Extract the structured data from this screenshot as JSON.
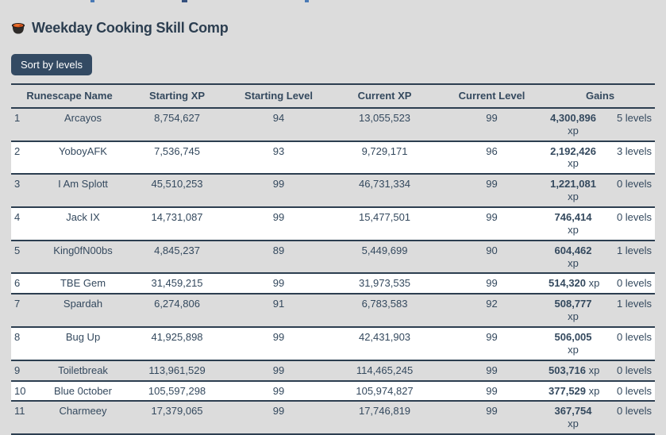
{
  "page": {
    "title": "Weekday Cooking Skill Comp",
    "title_icon": "cooking-pot-icon",
    "sort_button_label": "Sort by levels"
  },
  "colors": {
    "bg": "#dcdcdc",
    "row-alt": "#dcdcdc",
    "row-white": "#ffffff",
    "border": "#2c3e50",
    "text": "#34495e",
    "title-text": "#2c3e50",
    "button-bg": "#334a63",
    "button-text": "#ffffff",
    "pot-orange": "#d9591f",
    "pot-dark": "#2e2b29"
  },
  "table": {
    "headers": [
      "Runescape Name",
      "Starting XP",
      "Starting Level",
      "Current XP",
      "Current Level",
      "Gains"
    ],
    "rows": [
      {
        "rank": "1",
        "name": "Arcayos",
        "starting_xp": "8,754,627",
        "starting_level": "94",
        "current_xp": "13,055,523",
        "current_level": "99",
        "gains_xp": "4,300,896",
        "gains_xp_unit": "xp",
        "gains_xp_wrap": true,
        "gains_levels": "5 levels"
      },
      {
        "rank": "2",
        "name": "YoboyAFK",
        "starting_xp": "7,536,745",
        "starting_level": "93",
        "current_xp": "9,729,171",
        "current_level": "96",
        "gains_xp": "2,192,426",
        "gains_xp_unit": "xp",
        "gains_xp_wrap": true,
        "gains_levels": "3 levels"
      },
      {
        "rank": "3",
        "name": "I Am Splott",
        "starting_xp": "45,510,253",
        "starting_level": "99",
        "current_xp": "46,731,334",
        "current_level": "99",
        "gains_xp": "1,221,081",
        "gains_xp_unit": "xp",
        "gains_xp_wrap": true,
        "gains_levels": "0 levels"
      },
      {
        "rank": "4",
        "name": "Jack IX",
        "starting_xp": "14,731,087",
        "starting_level": "99",
        "current_xp": "15,477,501",
        "current_level": "99",
        "gains_xp": "746,414",
        "gains_xp_unit": "xp",
        "gains_xp_wrap": true,
        "gains_levels": "0 levels"
      },
      {
        "rank": "5",
        "name": "King0fN00bs",
        "starting_xp": "4,845,237",
        "starting_level": "89",
        "current_xp": "5,449,699",
        "current_level": "90",
        "gains_xp": "604,462",
        "gains_xp_unit": "xp",
        "gains_xp_wrap": true,
        "gains_levels": "1 levels"
      },
      {
        "rank": "6",
        "name": "TBE Gem",
        "starting_xp": "31,459,215",
        "starting_level": "99",
        "current_xp": "31,973,535",
        "current_level": "99",
        "gains_xp": "514,320",
        "gains_xp_unit": "xp",
        "gains_xp_wrap": false,
        "gains_levels": "0 levels"
      },
      {
        "rank": "7",
        "name": "Spardah",
        "starting_xp": "6,274,806",
        "starting_level": "91",
        "current_xp": "6,783,583",
        "current_level": "92",
        "gains_xp": "508,777",
        "gains_xp_unit": "xp",
        "gains_xp_wrap": true,
        "gains_levels": "1 levels"
      },
      {
        "rank": "8",
        "name": "Bug Up",
        "starting_xp": "41,925,898",
        "starting_level": "99",
        "current_xp": "42,431,903",
        "current_level": "99",
        "gains_xp": "506,005",
        "gains_xp_unit": "xp",
        "gains_xp_wrap": true,
        "gains_levels": "0 levels"
      },
      {
        "rank": "9",
        "name": "Toiletbreak",
        "starting_xp": "113,961,529",
        "starting_level": "99",
        "current_xp": "114,465,245",
        "current_level": "99",
        "gains_xp": "503,716",
        "gains_xp_unit": "xp",
        "gains_xp_wrap": false,
        "gains_levels": "0 levels"
      },
      {
        "rank": "10",
        "name": "Blue 0ctober",
        "starting_xp": "105,597,298",
        "starting_level": "99",
        "current_xp": "105,974,827",
        "current_level": "99",
        "gains_xp": "377,529",
        "gains_xp_unit": "xp",
        "gains_xp_wrap": false,
        "gains_levels": "0 levels"
      },
      {
        "rank": "11",
        "name": "Charmeey",
        "starting_xp": "17,379,065",
        "starting_level": "99",
        "current_xp": "17,746,819",
        "current_level": "99",
        "gains_xp": "367,754",
        "gains_xp_unit": "xp",
        "gains_xp_wrap": true,
        "gains_levels": "0 levels"
      }
    ]
  }
}
